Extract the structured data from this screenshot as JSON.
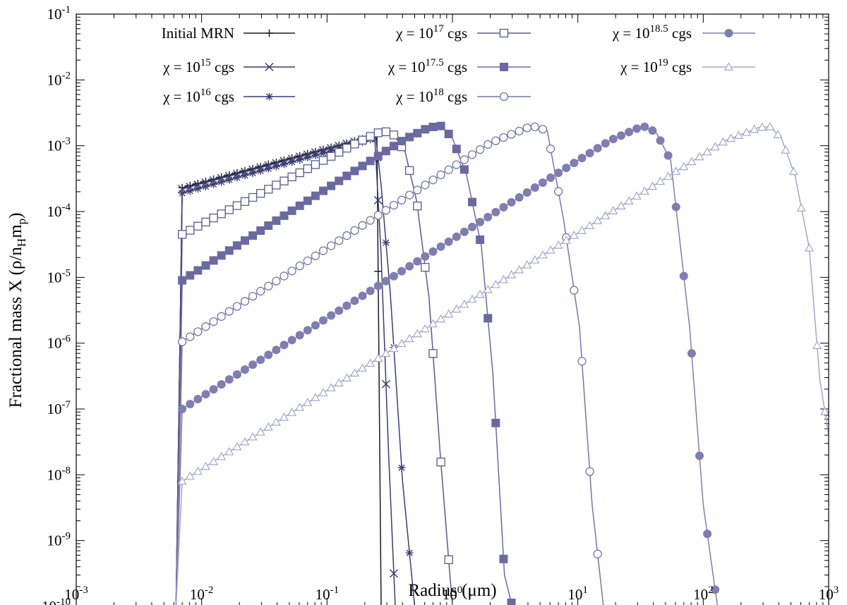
{
  "chart_data": {
    "type": "line",
    "xscale": "log",
    "yscale": "log",
    "xlim": [
      0.001,
      1000
    ],
    "ylim": [
      1e-10,
      0.1
    ],
    "xlabel": "Radius (μm)",
    "ylabel": {
      "main": "Fractional mass X (ρ/n",
      "sub1": "H",
      "mid": "m",
      "sub2": "p",
      "end": ")"
    },
    "x_ticks": [
      {
        "value": 0.001,
        "base": "10",
        "exp": "-3"
      },
      {
        "value": 0.01,
        "base": "10",
        "exp": "-2"
      },
      {
        "value": 0.1,
        "base": "10",
        "exp": "-1"
      },
      {
        "value": 1,
        "base": "10",
        "exp": "0"
      },
      {
        "value": 10,
        "base": "10",
        "exp": "1"
      },
      {
        "value": 100,
        "base": "10",
        "exp": "2"
      },
      {
        "value": 1000,
        "base": "10",
        "exp": "3"
      }
    ],
    "y_ticks": [
      {
        "value": 1e-10,
        "base": "10",
        "exp": "-10"
      },
      {
        "value": 1e-09,
        "base": "10",
        "exp": "-9"
      },
      {
        "value": 1e-08,
        "base": "10",
        "exp": "-8"
      },
      {
        "value": 1e-07,
        "base": "10",
        "exp": "-7"
      },
      {
        "value": 1e-06,
        "base": "10",
        "exp": "-6"
      },
      {
        "value": 1e-05,
        "base": "10",
        "exp": "-5"
      },
      {
        "value": 0.0001,
        "base": "10",
        "exp": "-4"
      },
      {
        "value": 0.001,
        "base": "10",
        "exp": "-3"
      },
      {
        "value": 0.01,
        "base": "10",
        "exp": "-2"
      },
      {
        "value": 0.1,
        "base": "10",
        "exp": "-1"
      }
    ],
    "series": [
      {
        "name": "Initial MRN",
        "label_pre": "Initial MRN",
        "label_exp": "",
        "label_post": "",
        "color": "#1a1a2e",
        "marker": "plus",
        "x": [
          0.00625,
          0.007,
          0.25,
          0.27
        ],
        "y": [
          1e-10,
          0.00023,
          0.00145,
          1e-10
        ]
      },
      {
        "name": "χ = 10^15 cgs",
        "label_pre": "χ = 10",
        "label_exp": "15",
        "label_post": " cgs",
        "color": "#3c3c6e",
        "marker": "x",
        "x": [
          0.00625,
          0.007,
          0.21,
          0.24,
          0.27,
          0.31,
          0.35
        ],
        "y": [
          1e-10,
          0.00022,
          0.0013,
          0.00135,
          2.2e-05,
          2e-08,
          1e-10
        ]
      },
      {
        "name": "χ = 10^16 cgs",
        "label_pre": "χ = 10",
        "label_exp": "16",
        "label_post": " cgs",
        "color": "#3d3d72",
        "marker": "asterisk",
        "x": [
          0.00625,
          0.007,
          0.21,
          0.245,
          0.27,
          0.32,
          0.4,
          0.5
        ],
        "y": [
          1e-10,
          0.00019,
          0.0012,
          0.00135,
          0.00025,
          5.5e-06,
          8e-09,
          1e-10
        ]
      },
      {
        "name": "χ = 10^17 cgs",
        "label_pre": "χ = 10",
        "label_exp": "17",
        "label_post": " cgs",
        "color": "#5a5a8e",
        "marker": "square-open",
        "x": [
          0.00625,
          0.007,
          0.18,
          0.27,
          0.33,
          0.42,
          0.52,
          0.65,
          0.8,
          1.0
        ],
        "y": [
          1e-10,
          4.5e-05,
          0.00115,
          0.00165,
          0.0016,
          0.0008,
          0.00014,
          5e-06,
          2e-08,
          1e-10
        ]
      },
      {
        "name": "χ = 10^17.5 cgs",
        "label_pre": "χ = 10",
        "label_exp": "17.5",
        "label_post": " cgs",
        "color": "#6a6aa0",
        "marker": "square-filled",
        "x": [
          0.00625,
          0.007,
          0.4,
          0.65,
          0.82,
          1.0,
          1.3,
          1.7,
          2.1,
          2.6,
          3.0
        ],
        "y": [
          1e-10,
          9e-06,
          0.0012,
          0.0019,
          0.002,
          0.0013,
          0.00035,
          3e-05,
          3.5e-07,
          3e-10,
          1e-10
        ]
      },
      {
        "name": "χ = 10^18 cgs",
        "label_pre": "χ = 10",
        "label_exp": "18",
        "label_post": " cgs",
        "color": "#7676a8",
        "marker": "circle-open",
        "x": [
          0.00625,
          0.007,
          2.0,
          4.3,
          5.7,
          7.7,
          10.3,
          13.0,
          16.0
        ],
        "y": [
          1e-10,
          1.05e-06,
          0.0011,
          0.002,
          0.0017,
          7.5e-05,
          1.8e-06,
          3.5e-09,
          1e-10
        ]
      },
      {
        "name": "χ = 10^18.5 cgs",
        "label_pre": "χ = 10",
        "label_exp": "18.5",
        "label_post": " cgs",
        "color": "#7e7eb0",
        "marker": "circle-filled",
        "x": [
          0.00625,
          0.007,
          18.0,
          33.0,
          42.0,
          55.0,
          78.0,
          100.0,
          130.0
        ],
        "y": [
          1e-10,
          1e-07,
          0.0012,
          0.002,
          0.0016,
          0.0006,
          1.7e-06,
          3.5e-09,
          1e-10
        ]
      },
      {
        "name": "χ = 10^19 cgs",
        "label_pre": "χ = 10",
        "label_exp": "19",
        "label_post": " cgs",
        "color": "#a6a6cc",
        "marker": "triangle-open",
        "x": [
          0.00625,
          0.007,
          150.0,
          280.0,
          340.0,
          420.0,
          540.0,
          700.0,
          850.0,
          1000.0
        ],
        "y": [
          1e-10,
          8e-09,
          0.0012,
          0.0019,
          0.00195,
          0.0013,
          0.00035,
          2.8e-05,
          2.8e-07,
          4e-08
        ]
      }
    ]
  }
}
